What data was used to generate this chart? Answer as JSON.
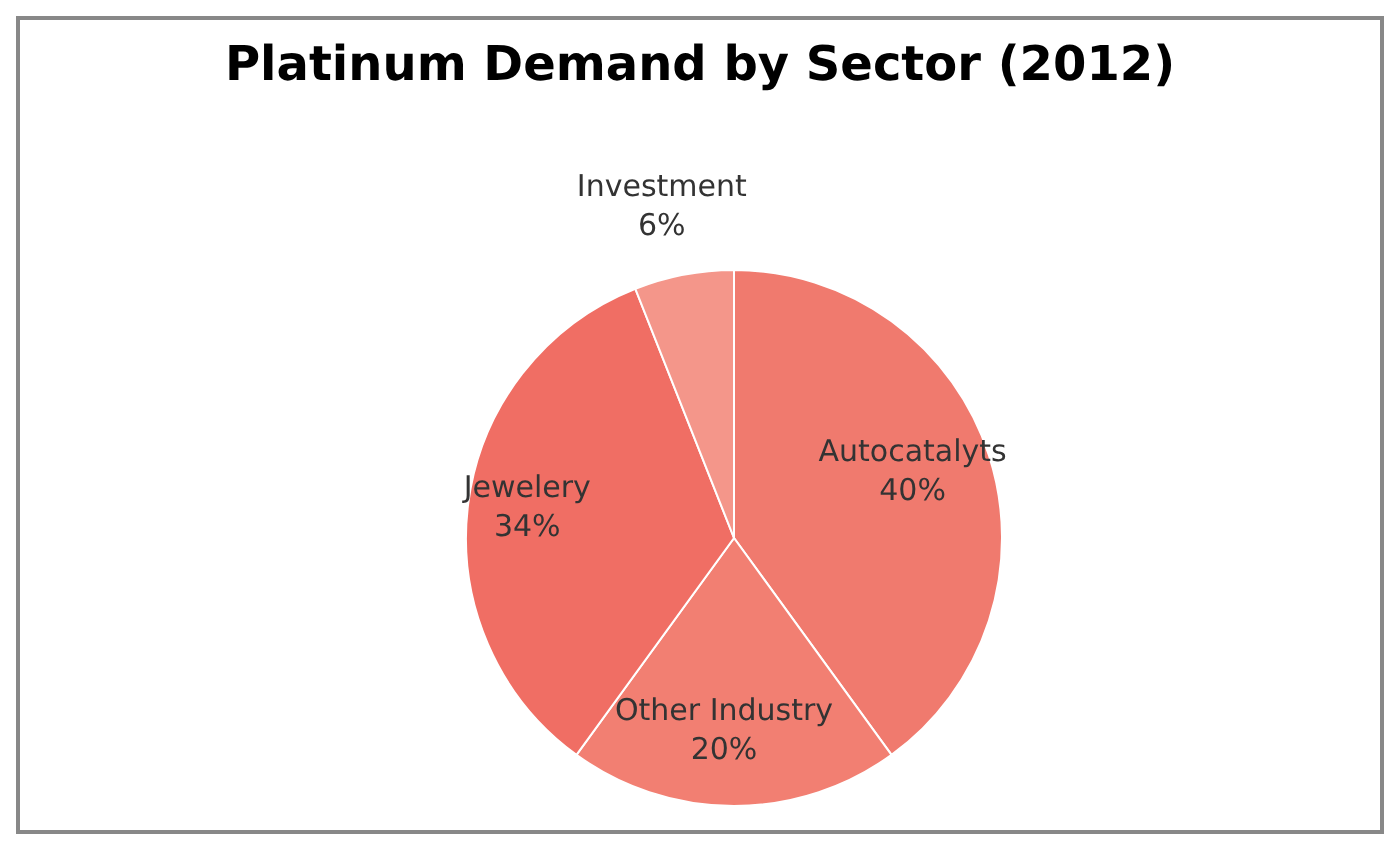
{
  "chart_data": {
    "type": "pie",
    "title": "Platinum Demand by Sector (2012)",
    "categories": [
      "Autocatalyts",
      "Other Industry",
      "Jewelery",
      "Investment"
    ],
    "values": [
      40,
      20,
      34,
      6
    ],
    "colors": [
      "#f07a6e",
      "#f27f72",
      "#f06e64",
      "#f4968a"
    ],
    "value_labels": [
      "40%",
      "20%",
      "34%",
      "6%"
    ]
  }
}
